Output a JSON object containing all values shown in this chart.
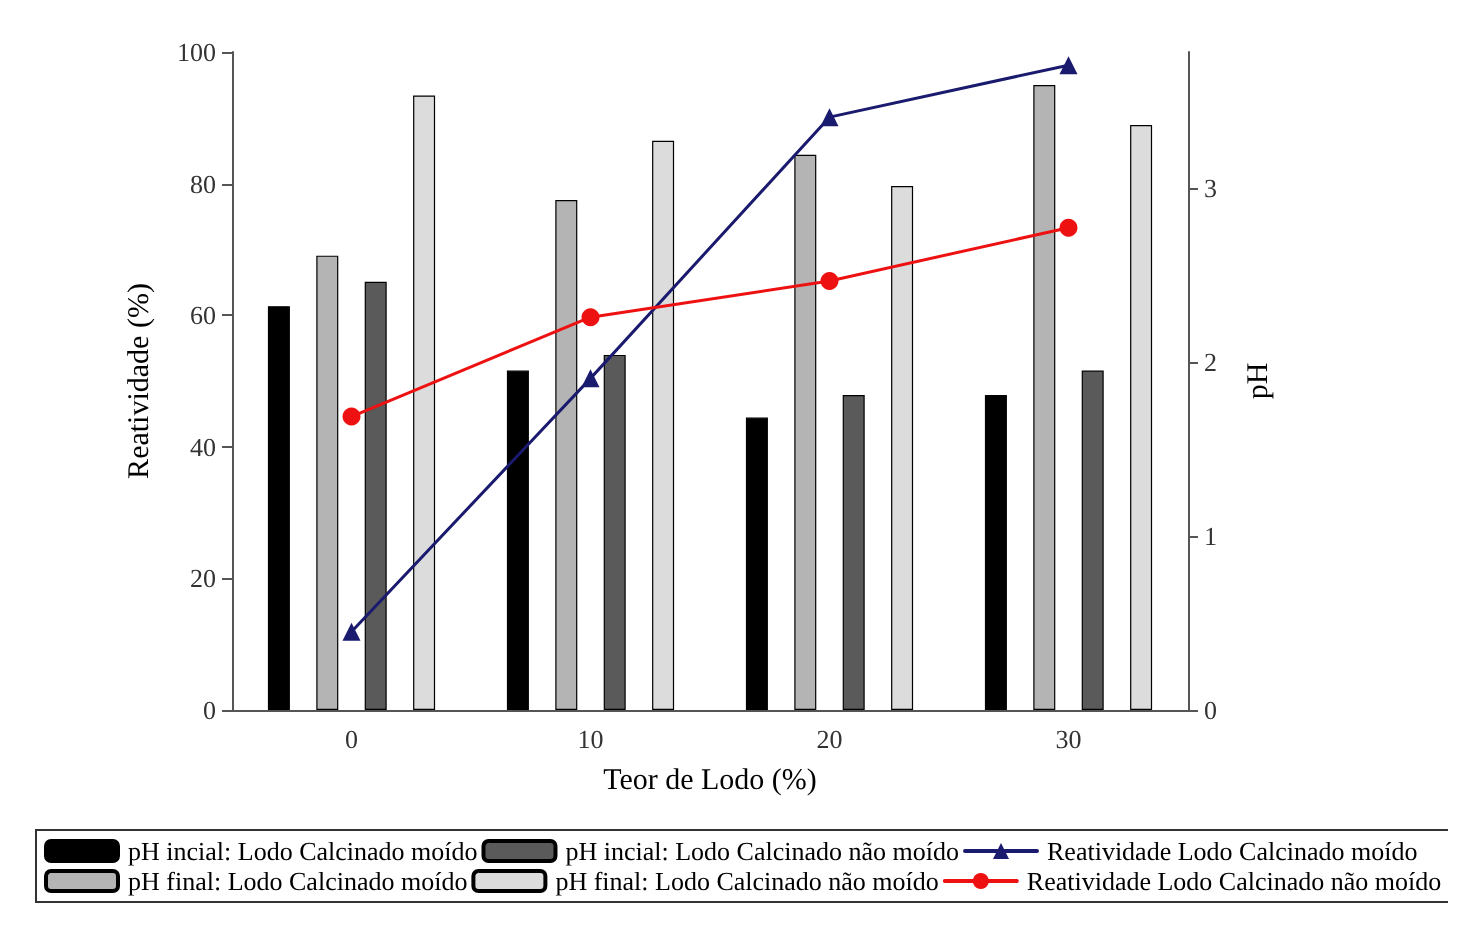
{
  "chart_data": {
    "type": "bar",
    "xlabel": "Teor de Lodo (%)",
    "ylabel": "Reatividade (%)",
    "y2label": "pH",
    "categories": [
      "0",
      "10",
      "20",
      "30"
    ],
    "series": [
      {
        "name": "pH incial: Lodo Calcinado moído",
        "color": "#000000",
        "axis": "y2",
        "values": [
          2.32,
          1.95,
          1.68,
          1.81
        ]
      },
      {
        "name": "pH final: Lodo Calcinado moído",
        "color": "#b4b4b4",
        "axis": "y2",
        "values": [
          2.61,
          2.93,
          3.19,
          3.59
        ]
      },
      {
        "name": "pH incial: Lodo Calcinado não moído",
        "color": "#5a5a5a",
        "axis": "y2",
        "values": [
          2.46,
          2.04,
          1.81,
          1.95
        ]
      },
      {
        "name": "pH final: Lodo Calcinado não moído",
        "color": "#dcdcdc",
        "axis": "y2",
        "values": [
          3.53,
          3.27,
          3.01,
          3.36
        ]
      },
      {
        "name": "Reatividade Lodo Calcinado moído",
        "type": "line",
        "color": "#1a1a6e",
        "marker": "triangle",
        "values": [
          11.9,
          50.4,
          90.1,
          98
        ]
      },
      {
        "name": "Reatividade Lodo Calcinado não moído",
        "type": "line",
        "color": "#ee1111",
        "marker": "circle",
        "values": [
          44.6,
          59.7,
          65.2,
          73.3
        ]
      }
    ],
    "ylim": [
      0,
      100
    ],
    "yticks": [
      0,
      20,
      40,
      60,
      80,
      100
    ],
    "y2lim": [
      0,
      3.78
    ],
    "y2ticks": [
      0,
      1,
      2,
      3
    ],
    "grid": false,
    "legend": "bottom",
    "line_style": "solid"
  }
}
